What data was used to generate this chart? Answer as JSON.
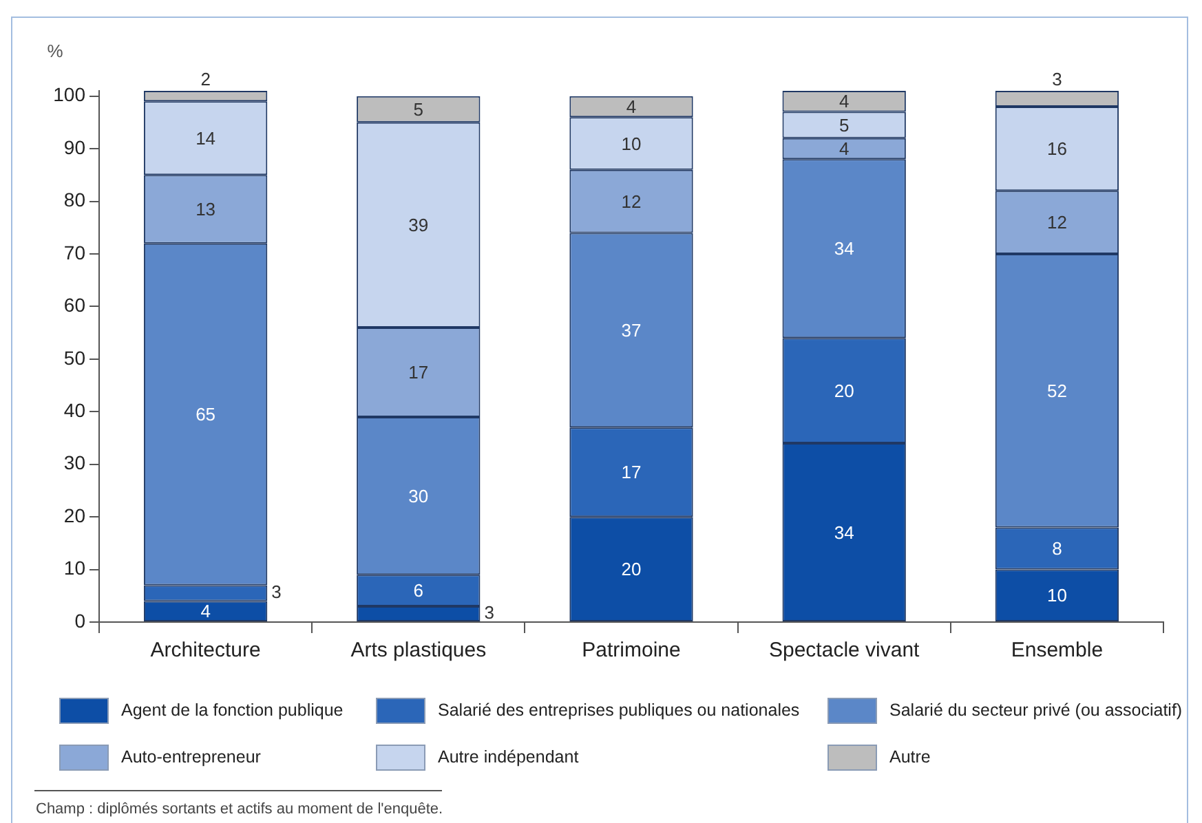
{
  "chart_data": {
    "type": "bar",
    "stacked": true,
    "ylabel": "%",
    "categories": [
      "Architecture",
      "Arts plastiques",
      "Patrimoine",
      "Spectacle vivant",
      "Ensemble"
    ],
    "series": [
      {
        "name": "Agent de la fonction publique",
        "color": "#0d4ea6",
        "values": [
          4,
          3,
          20,
          34,
          10
        ]
      },
      {
        "name": "Salarié des entreprises publiques ou nationales",
        "color": "#2b66b8",
        "values": [
          3,
          6,
          17,
          20,
          8
        ]
      },
      {
        "name": "Salarié du secteur privé (ou associatif)",
        "color": "#5b87c8",
        "values": [
          65,
          30,
          37,
          34,
          52
        ]
      },
      {
        "name": "Auto-entrepreneur",
        "color": "#8ba8d7",
        "values": [
          13,
          17,
          12,
          4,
          12
        ]
      },
      {
        "name": "Autre indépendant",
        "color": "#c6d5ee",
        "values": [
          14,
          39,
          10,
          5,
          16
        ]
      },
      {
        "name": "Autre",
        "color": "#bdbdbd",
        "values": [
          2,
          5,
          4,
          4,
          3
        ]
      }
    ],
    "ylim": [
      0,
      101
    ],
    "yticks": [
      0,
      10,
      20,
      30,
      40,
      50,
      60,
      70,
      80,
      90,
      100
    ],
    "grid": false,
    "legend": "bottom",
    "data_labels": true,
    "annotations": [
      "Champ : diplômés sortants et actifs au moment de l'enquête."
    ]
  }
}
